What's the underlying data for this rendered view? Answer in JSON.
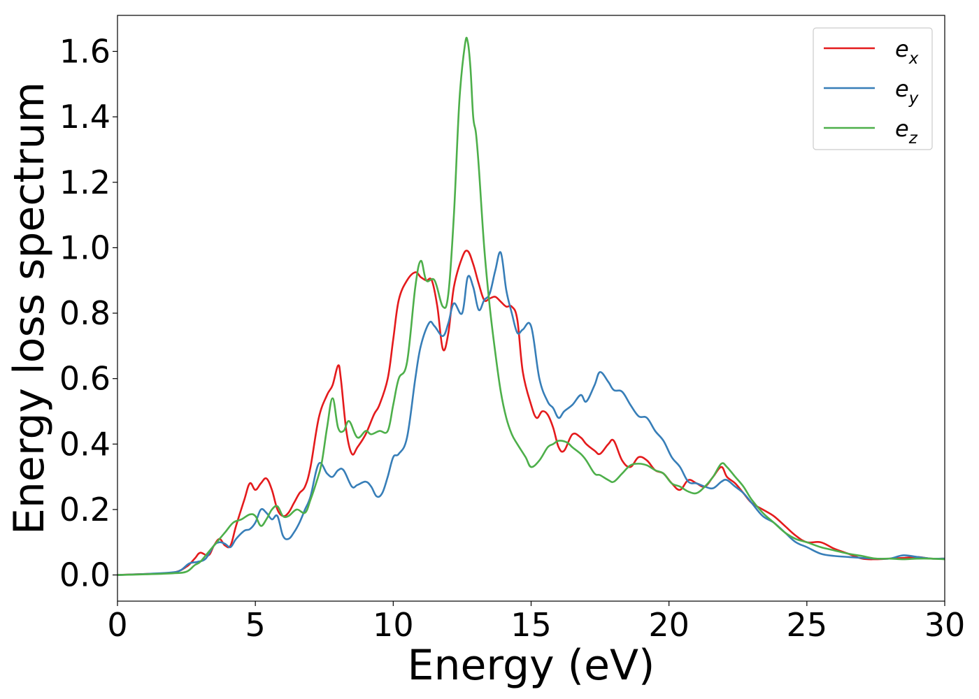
{
  "chart_data": {
    "type": "line",
    "title": "",
    "xlabel": "Energy (eV)",
    "ylabel": "Energy loss spectrum",
    "xlim": [
      0,
      30
    ],
    "ylim": [
      -0.08,
      1.71
    ],
    "xticks": [
      0,
      5,
      10,
      15,
      20,
      25,
      30
    ],
    "xtick_labels": [
      "0",
      "5",
      "10",
      "15",
      "20",
      "25",
      "30"
    ],
    "yticks": [
      0.0,
      0.2,
      0.4,
      0.6,
      0.8,
      1.0,
      1.2,
      1.4,
      1.6
    ],
    "ytick_labels": [
      "0.0",
      "0.2",
      "0.4",
      "0.6",
      "0.8",
      "1.0",
      "1.2",
      "1.4",
      "1.6"
    ],
    "grid": false,
    "legend_position": "top-right",
    "series": [
      {
        "name": "e_x",
        "legend_base": "e",
        "legend_sub": "x",
        "color": "#e41a1c",
        "x": [
          0,
          1,
          2,
          2.5,
          2.8,
          3.0,
          3.3,
          3.5,
          3.7,
          3.9,
          4.1,
          4.3,
          4.6,
          4.8,
          5.0,
          5.2,
          5.4,
          5.6,
          5.8,
          6.0,
          6.2,
          6.4,
          6.6,
          6.8,
          7.0,
          7.3,
          7.6,
          7.8,
          8.0,
          8.1,
          8.3,
          8.5,
          8.7,
          9.0,
          9.3,
          9.5,
          9.8,
          10.0,
          10.2,
          10.5,
          10.8,
          11.0,
          11.2,
          11.4,
          11.6,
          11.8,
          12.0,
          12.2,
          12.5,
          12.7,
          12.9,
          13.1,
          13.3,
          13.5,
          13.7,
          13.9,
          14.1,
          14.3,
          14.5,
          14.7,
          15.0,
          15.2,
          15.4,
          15.6,
          15.8,
          16.0,
          16.2,
          16.5,
          16.8,
          17.0,
          17.3,
          17.5,
          17.8,
          18.0,
          18.3,
          18.6,
          18.9,
          19.2,
          19.5,
          19.8,
          20.1,
          20.4,
          20.7,
          21.0,
          21.3,
          21.6,
          21.9,
          22.1,
          22.4,
          22.7,
          23.0,
          23.4,
          23.8,
          24.2,
          24.6,
          25.0,
          25.5,
          26.0,
          26.5,
          27.0,
          27.5,
          28.0,
          28.5,
          29.0,
          29.5,
          30
        ],
        "y": [
          0.0,
          0.003,
          0.007,
          0.025,
          0.05,
          0.068,
          0.06,
          0.09,
          0.11,
          0.09,
          0.09,
          0.15,
          0.23,
          0.28,
          0.26,
          0.28,
          0.295,
          0.26,
          0.2,
          0.18,
          0.19,
          0.22,
          0.25,
          0.27,
          0.33,
          0.48,
          0.55,
          0.58,
          0.64,
          0.6,
          0.44,
          0.37,
          0.39,
          0.43,
          0.49,
          0.52,
          0.6,
          0.72,
          0.84,
          0.9,
          0.925,
          0.91,
          0.9,
          0.9,
          0.82,
          0.69,
          0.74,
          0.88,
          0.97,
          0.99,
          0.95,
          0.89,
          0.84,
          0.845,
          0.85,
          0.835,
          0.82,
          0.82,
          0.78,
          0.62,
          0.52,
          0.48,
          0.5,
          0.49,
          0.45,
          0.39,
          0.38,
          0.43,
          0.42,
          0.4,
          0.38,
          0.37,
          0.4,
          0.41,
          0.35,
          0.33,
          0.36,
          0.35,
          0.32,
          0.31,
          0.28,
          0.26,
          0.29,
          0.28,
          0.27,
          0.3,
          0.33,
          0.3,
          0.28,
          0.25,
          0.22,
          0.2,
          0.18,
          0.15,
          0.12,
          0.1,
          0.1,
          0.08,
          0.065,
          0.05,
          0.048,
          0.05,
          0.052,
          0.055,
          0.05,
          0.05
        ]
      },
      {
        "name": "e_y",
        "legend_base": "e",
        "legend_sub": "y",
        "color": "#377eb8",
        "x": [
          0,
          1,
          2,
          2.3,
          2.6,
          2.9,
          3.2,
          3.5,
          3.7,
          3.9,
          4.1,
          4.3,
          4.6,
          4.8,
          5.0,
          5.2,
          5.4,
          5.6,
          5.8,
          6.0,
          6.2,
          6.4,
          6.6,
          6.8,
          7.0,
          7.3,
          7.6,
          7.8,
          8.0,
          8.2,
          8.5,
          8.7,
          9.0,
          9.2,
          9.4,
          9.6,
          9.8,
          10.0,
          10.2,
          10.5,
          10.8,
          11.0,
          11.3,
          11.5,
          11.8,
          12.0,
          12.2,
          12.5,
          12.7,
          12.9,
          13.1,
          13.3,
          13.5,
          13.7,
          13.9,
          14.1,
          14.3,
          14.5,
          14.7,
          15.0,
          15.3,
          15.6,
          15.8,
          16.0,
          16.2,
          16.5,
          16.8,
          17.0,
          17.3,
          17.5,
          17.8,
          18.0,
          18.3,
          18.6,
          18.9,
          19.2,
          19.5,
          19.8,
          20.1,
          20.4,
          20.7,
          21.0,
          21.3,
          21.6,
          21.9,
          22.1,
          22.4,
          22.7,
          23.0,
          23.4,
          23.8,
          24.2,
          24.6,
          25.0,
          25.5,
          26.0,
          26.5,
          27.0,
          27.5,
          28.0,
          28.5,
          29.0,
          29.5,
          30
        ],
        "y": [
          0.0,
          0.003,
          0.008,
          0.015,
          0.035,
          0.04,
          0.05,
          0.09,
          0.1,
          0.095,
          0.085,
          0.11,
          0.135,
          0.14,
          0.16,
          0.2,
          0.19,
          0.17,
          0.18,
          0.12,
          0.11,
          0.13,
          0.16,
          0.2,
          0.24,
          0.34,
          0.31,
          0.3,
          0.32,
          0.32,
          0.27,
          0.275,
          0.285,
          0.27,
          0.24,
          0.25,
          0.3,
          0.36,
          0.37,
          0.42,
          0.6,
          0.7,
          0.77,
          0.76,
          0.73,
          0.77,
          0.83,
          0.8,
          0.91,
          0.88,
          0.81,
          0.84,
          0.86,
          0.93,
          0.985,
          0.87,
          0.8,
          0.74,
          0.75,
          0.76,
          0.6,
          0.53,
          0.51,
          0.48,
          0.5,
          0.52,
          0.55,
          0.53,
          0.58,
          0.62,
          0.59,
          0.565,
          0.56,
          0.52,
          0.485,
          0.48,
          0.44,
          0.41,
          0.36,
          0.33,
          0.285,
          0.28,
          0.27,
          0.265,
          0.285,
          0.29,
          0.27,
          0.25,
          0.22,
          0.18,
          0.16,
          0.13,
          0.1,
          0.085,
          0.065,
          0.058,
          0.055,
          0.052,
          0.05,
          0.05,
          0.06,
          0.055,
          0.05,
          0.05
        ]
      },
      {
        "name": "e_z",
        "legend_base": "e",
        "legend_sub": "z",
        "color": "#4daf4a",
        "x": [
          0,
          1,
          2,
          2.5,
          2.8,
          3.0,
          3.3,
          3.6,
          3.9,
          4.2,
          4.5,
          4.8,
          5.0,
          5.2,
          5.4,
          5.6,
          5.8,
          6.0,
          6.2,
          6.5,
          6.8,
          7.0,
          7.2,
          7.4,
          7.6,
          7.8,
          8.0,
          8.2,
          8.4,
          8.7,
          9.0,
          9.2,
          9.5,
          9.8,
          10.0,
          10.2,
          10.5,
          10.8,
          11.0,
          11.2,
          11.5,
          11.8,
          12.0,
          12.2,
          12.4,
          12.6,
          12.7,
          12.8,
          12.9,
          13.0,
          13.1,
          13.3,
          13.5,
          13.7,
          13.9,
          14.1,
          14.3,
          14.5,
          14.8,
          15.0,
          15.3,
          15.6,
          15.8,
          16.0,
          16.3,
          16.5,
          16.8,
          17.0,
          17.3,
          17.5,
          17.8,
          18.0,
          18.3,
          18.6,
          18.9,
          19.2,
          19.5,
          19.8,
          20.1,
          20.4,
          20.7,
          21.0,
          21.3,
          21.6,
          21.9,
          22.1,
          22.4,
          22.7,
          23.0,
          23.4,
          23.8,
          24.2,
          24.6,
          25.0,
          25.5,
          26.0,
          26.5,
          27.0,
          27.5,
          28.0,
          28.5,
          29.0,
          29.5,
          30
        ],
        "y": [
          0.0,
          0.002,
          0.005,
          0.01,
          0.03,
          0.04,
          0.07,
          0.1,
          0.13,
          0.16,
          0.17,
          0.185,
          0.18,
          0.15,
          0.17,
          0.2,
          0.21,
          0.18,
          0.18,
          0.2,
          0.19,
          0.23,
          0.28,
          0.34,
          0.45,
          0.54,
          0.45,
          0.44,
          0.47,
          0.42,
          0.44,
          0.43,
          0.44,
          0.44,
          0.52,
          0.6,
          0.65,
          0.88,
          0.96,
          0.9,
          0.9,
          0.82,
          0.86,
          1.1,
          1.45,
          1.62,
          1.63,
          1.55,
          1.4,
          1.35,
          1.25,
          1.0,
          0.82,
          0.68,
          0.56,
          0.48,
          0.43,
          0.4,
          0.36,
          0.33,
          0.35,
          0.39,
          0.4,
          0.41,
          0.405,
          0.39,
          0.37,
          0.35,
          0.31,
          0.305,
          0.29,
          0.285,
          0.31,
          0.335,
          0.34,
          0.335,
          0.32,
          0.31,
          0.28,
          0.27,
          0.255,
          0.25,
          0.27,
          0.3,
          0.34,
          0.33,
          0.3,
          0.27,
          0.23,
          0.19,
          0.16,
          0.13,
          0.11,
          0.1,
          0.085,
          0.075,
          0.065,
          0.058,
          0.05,
          0.05,
          0.048,
          0.05,
          0.05,
          0.048
        ]
      }
    ]
  }
}
